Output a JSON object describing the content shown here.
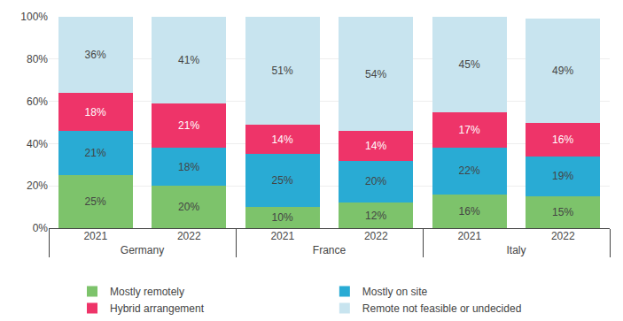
{
  "chart_data": {
    "type": "bar",
    "stacked": true,
    "data_labels": true,
    "grid": true,
    "legend": "bottom",
    "categories": [
      [
        "Germany",
        "2021"
      ],
      [
        "Germany",
        "2022"
      ],
      [
        "France",
        "2021"
      ],
      [
        "France",
        "2022"
      ],
      [
        "Italy",
        "2021"
      ],
      [
        "Italy",
        "2022"
      ]
    ],
    "ylim": [
      0,
      100
    ],
    "yticks": [
      {
        "value": 0,
        "label": "0%"
      },
      {
        "value": 20,
        "label": "20%"
      },
      {
        "value": 40,
        "label": "40%"
      },
      {
        "value": 60,
        "label": "60%"
      },
      {
        "value": 80,
        "label": "80%"
      },
      {
        "value": 100,
        "label": "100%"
      }
    ],
    "series": [
      {
        "name": "Mostly remotely",
        "color": "#7DC36B",
        "values": [
          25,
          20,
          10,
          12,
          16,
          15
        ],
        "value_labels": [
          "25%",
          "20%",
          "10%",
          "12%",
          "16%",
          "15%"
        ]
      },
      {
        "name": "Mostly on site",
        "color": "#29ABD4",
        "values": [
          21,
          18,
          25,
          20,
          22,
          19
        ],
        "value_labels": [
          "21%",
          "18%",
          "25%",
          "20%",
          "22%",
          "19%"
        ]
      },
      {
        "name": "Hybrid arrangement",
        "color": "#EE3469",
        "values": [
          18,
          21,
          14,
          14,
          17,
          16
        ],
        "value_labels": [
          "18%",
          "21%",
          "14%",
          "14%",
          "17%",
          "16%"
        ]
      },
      {
        "name": "Remote not feasible or undecided",
        "color": "#C8E4EF",
        "values": [
          36,
          41,
          51,
          54,
          45,
          49
        ],
        "value_labels": [
          "36%",
          "41%",
          "51%",
          "54%",
          "45%",
          "49%"
        ]
      }
    ]
  }
}
